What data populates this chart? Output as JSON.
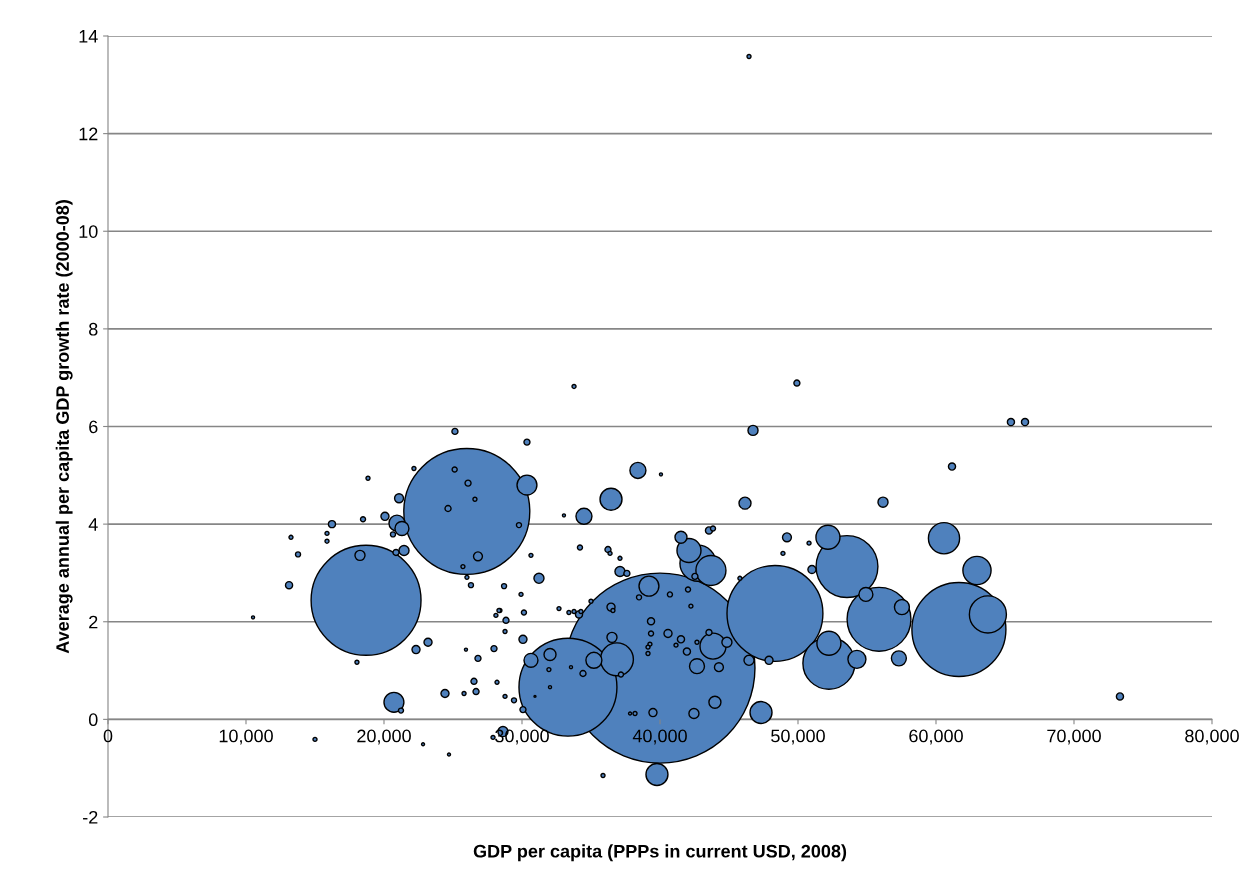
{
  "chart_data": {
    "type": "bubble",
    "xlabel": "GDP per capita (PPPs in current USD, 2008)",
    "ylabel": "Average annual per capita GDP growth rate (2000-08)",
    "xlim": [
      0,
      80000
    ],
    "ylim": [
      -2,
      14
    ],
    "xticks": [
      0,
      {
        "value": 10000,
        "label": "10,000"
      },
      {
        "value": 20000,
        "label": "20,000"
      },
      {
        "value": 30000,
        "label": "30,000"
      },
      {
        "value": 40000,
        "label": "40,000"
      },
      {
        "value": 50000,
        "label": "50,000"
      },
      {
        "value": 60000,
        "label": "60,000"
      },
      {
        "value": 70000,
        "label": "70,000"
      },
      {
        "value": 80000,
        "label": "80,000"
      }
    ],
    "yticks": [
      -2,
      0,
      2,
      4,
      6,
      8,
      10,
      12,
      14
    ],
    "grid": "y",
    "legend": false,
    "series": [
      {
        "color": "#4f81bd",
        "x": [
          40000,
          26000,
          18700,
          33330,
          48330,
          61660,
          53550,
          55870,
          52240,
          63760,
          60580,
          42750,
          36880,
          62970,
          43690,
          52170,
          52240,
          43840,
          42100,
          47320,
          39780,
          30360,
          39200,
          36450,
          20720,
          54270,
          20940,
          38400,
          34490,
          57530,
          57310,
          42680,
          21300,
          54920,
          35210,
          30650,
          46740,
          46160,
          41520,
          56160,
          36520,
          44850,
          46450,
          43980,
          42460,
          21450,
          32030,
          18260,
          28620,
          44270,
          21090,
          39490,
          47900,
          31230,
          37100,
          23190,
          22320,
          40580,
          49200,
          20070,
          26810,
          61160,
          65430,
          66450,
          73330,
          49920,
          51010,
          26810,
          34130,
          30070,
          41520,
          41950,
          39350,
          43550,
          16230,
          36450,
          30070,
          24420,
          13120,
          28770,
          25140,
          26090,
          24640,
          37600,
          42530,
          20870,
          13770,
          37170,
          34420,
          27970,
          28840,
          29420,
          26520,
          26670,
          33770,
          30360,
          36230,
          28700,
          25120,
          40720,
          39350,
          42030,
          38480,
          29780,
          34200,
          30140,
          26300,
          21230,
          22170,
          18840,
          26590,
          40070,
          33040,
          43550,
          43840,
          30650,
          36380,
          37100,
          48910,
          50800,
          45790,
          29930,
          42240,
          35000,
          32680,
          28400,
          33400,
          33770,
          34270,
          36590,
          28770,
          41160,
          42680,
          39270,
          39130,
          39130,
          38190,
          31950,
          15870,
          15870,
          13260,
          18480,
          20650,
          25720,
          26010,
          25800,
          28330,
          28110,
          28190,
          18040,
          35870,
          27900,
          15000,
          46450,
          25940,
          33550,
          32030,
          30940,
          37830,
          10510,
          22830,
          24710
        ],
        "values": [
          1.05,
          4.26,
          2.44,
          0.66,
          2.17,
          1.84,
          3.13,
          2.05,
          1.15,
          2.15,
          3.71,
          3.2,
          1.23,
          3.05,
          3.05,
          3.73,
          1.56,
          1.5,
          3.46,
          0.14,
          -1.13,
          4.8,
          2.73,
          4.51,
          0.35,
          1.23,
          4.02,
          5.1,
          4.16,
          2.3,
          1.25,
          1.09,
          3.91,
          2.56,
          1.21,
          1.21,
          5.92,
          4.43,
          3.73,
          4.45,
          1.68,
          1.58,
          1.21,
          0.35,
          0.12,
          3.46,
          1.33,
          3.36,
          -0.25,
          1.07,
          4.53,
          0.14,
          1.21,
          2.89,
          3.03,
          1.58,
          1.43,
          1.76,
          3.73,
          4.16,
          3.34,
          5.18,
          6.09,
          6.09,
          0.47,
          6.89,
          3.07,
          1.25,
          2.15,
          0.2,
          1.64,
          1.39,
          2.01,
          3.87,
          4.0,
          2.3,
          1.64,
          0.53,
          2.75,
          0.47,
          5.9,
          4.84,
          4.32,
          2.99,
          2.93,
          3.42,
          3.38,
          0.92,
          0.94,
          1.45,
          2.03,
          0.39,
          0.78,
          0.57,
          6.82,
          5.68,
          3.48,
          2.73,
          5.12,
          2.56,
          1.76,
          2.66,
          2.5,
          3.98,
          3.52,
          2.19,
          2.75,
          0.18,
          5.14,
          4.94,
          4.51,
          5.02,
          4.18,
          1.78,
          3.91,
          3.36,
          3.4,
          3.3,
          3.4,
          3.61,
          2.89,
          2.56,
          2.32,
          2.42,
          2.27,
          2.23,
          2.19,
          2.21,
          2.21,
          2.23,
          1.8,
          1.52,
          1.58,
          1.54,
          1.48,
          1.35,
          0.12,
          1.02,
          3.81,
          3.65,
          3.73,
          4.1,
          3.79,
          3.13,
          2.91,
          0.53,
          2.23,
          2.13,
          0.76,
          1.17,
          -1.15,
          -0.37,
          -0.41,
          13.58,
          1.43,
          1.07,
          0.66,
          0.47,
          0.12,
          2.09,
          -0.51,
          -0.72
        ],
        "sizes": [
          1,
          0.44,
          0.335,
          0.266,
          0.255,
          0.245,
          0.106,
          0.113,
          0.075,
          0.038,
          0.027,
          0.036,
          0.03,
          0.022,
          0.025,
          0.016,
          0.016,
          0.0187,
          0.016,
          0.0134,
          0.0134,
          0.011,
          0.011,
          0.0134,
          0.011,
          0.009,
          0.0071,
          0.0071,
          0.0071,
          0.0062,
          0.0062,
          0.0062,
          0.0054,
          0.0054,
          0.0071,
          0.0054,
          0.0028,
          0.004,
          0.004,
          0.0028,
          0.0028,
          0.0028,
          0.0028,
          0.004,
          0.0028,
          0.0028,
          0.004,
          0.0028,
          0.0028,
          0.0022,
          0.0022,
          0.0018,
          0.0018,
          0.0028,
          0.0028,
          0.0018,
          0.0018,
          0.0018,
          0.0022,
          0.0018,
          0.0022,
          0.0014,
          0.0014,
          0.0014,
          0.0014,
          0.001,
          0.0018,
          0.001,
          0.0014,
          0.001,
          0.0014,
          0.0014,
          0.0014,
          0.0014,
          0.0014,
          0.0018,
          0.0018,
          0.0018,
          0.0014,
          0.00044,
          0.001,
          0.001,
          0.001,
          0.001,
          0.001,
          0.001,
          0.0007,
          0.0007,
          0.001,
          0.001,
          0.001,
          0.0007,
          0.001,
          0.001,
          0.00044,
          0.001,
          0.001,
          0.0007,
          0.0007,
          0.0007,
          0.0007,
          0.0007,
          0.0007,
          0.0007,
          0.0007,
          0.0007,
          0.0007,
          0.0007,
          0.00044,
          0.00044,
          0.00044,
          0.00025,
          0.00025,
          0.001,
          0.0007,
          0.00044,
          0.00044,
          0.00044,
          0.00044,
          0.00044,
          0.00044,
          0.00044,
          0.00044,
          0.00044,
          0.00044,
          0.00044,
          0.00044,
          0.00044,
          0.00044,
          0.00044,
          0.00044,
          0.00044,
          0.00044,
          0.00044,
          0.00044,
          0.00044,
          0.00044,
          0.00044,
          0.00044,
          0.00044,
          0.00044,
          0.0007,
          0.0007,
          0.00044,
          0.00044,
          0.00044,
          0.00044,
          0.00044,
          0.00044,
          0.00044,
          0.00044,
          0.00044,
          0.00044,
          0.00044,
          0.00025,
          0.00025,
          0.00025,
          0.0001,
          0.00025,
          0.00025,
          0.00025,
          0.00025
        ]
      }
    ]
  }
}
